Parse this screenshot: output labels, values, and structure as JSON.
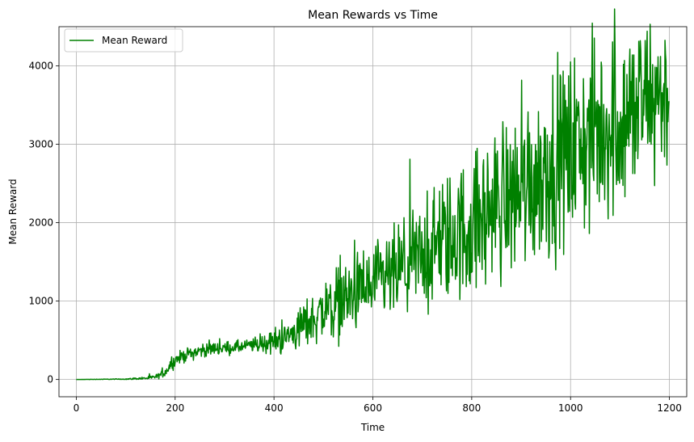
{
  "chart_data": {
    "type": "line",
    "title": "Mean Rewards vs Time",
    "xlabel": "Time",
    "ylabel": "Mean Reward",
    "xlim": [
      -35,
      1235
    ],
    "ylim": [
      -220,
      4500
    ],
    "xticks": [
      0,
      200,
      400,
      600,
      800,
      1000,
      1200
    ],
    "yticks": [
      0,
      1000,
      2000,
      3000,
      4000
    ],
    "xtick_labels": [
      "0",
      "200",
      "400",
      "600",
      "800",
      "1000",
      "1200"
    ],
    "ytick_labels": [
      "0",
      "1000",
      "2000",
      "3000",
      "4000"
    ],
    "grid": true,
    "legend": {
      "position": "upper-left",
      "entries": [
        "Mean Reward"
      ]
    },
    "series": [
      {
        "name": "Mean Reward",
        "color": "#008000",
        "x": [
          0,
          100,
          150,
          165,
          180,
          190,
          200,
          220,
          240,
          260,
          280,
          300,
          320,
          340,
          360,
          380,
          400,
          420,
          440,
          460,
          480,
          500,
          520,
          540,
          560,
          580,
          600,
          620,
          640,
          660,
          680,
          700,
          720,
          740,
          760,
          780,
          800,
          820,
          840,
          860,
          880,
          900,
          920,
          940,
          960,
          980,
          1000,
          1020,
          1040,
          1060,
          1080,
          1100,
          1120,
          1140,
          1160,
          1180,
          1199
        ],
        "mean": [
          0,
          5,
          20,
          40,
          100,
          180,
          250,
          310,
          350,
          380,
          400,
          400,
          410,
          420,
          440,
          460,
          490,
          520,
          600,
          700,
          780,
          880,
          950,
          1020,
          1080,
          1130,
          1180,
          1250,
          1320,
          1400,
          1480,
          1560,
          1650,
          1750,
          1800,
          1870,
          1950,
          2050,
          2170,
          2270,
          2350,
          2460,
          2550,
          2650,
          2740,
          2820,
          2920,
          3000,
          3080,
          3150,
          3230,
          3300,
          3380,
          3460,
          3550,
          3650,
          3550
        ],
        "spread": [
          0,
          4,
          15,
          20,
          40,
          50,
          50,
          50,
          55,
          55,
          55,
          50,
          50,
          50,
          60,
          80,
          100,
          120,
          150,
          180,
          200,
          240,
          280,
          300,
          300,
          300,
          320,
          340,
          360,
          380,
          400,
          430,
          460,
          500,
          520,
          540,
          560,
          580,
          600,
          620,
          640,
          660,
          680,
          700,
          700,
          710,
          720,
          720,
          730,
          730,
          730,
          720,
          700,
          690,
          680,
          650,
          600
        ]
      }
    ]
  }
}
